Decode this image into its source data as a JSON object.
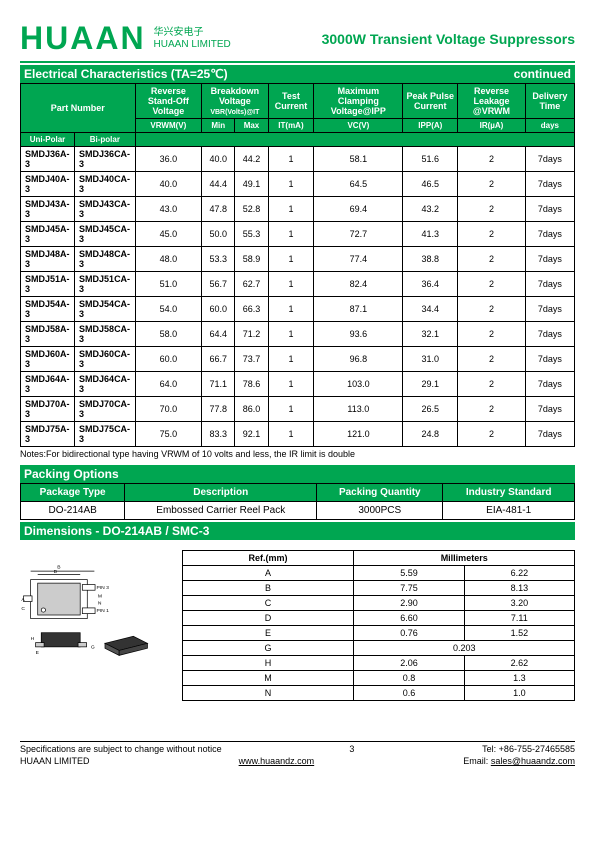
{
  "header": {
    "logo": "HUAAN",
    "logo_cn": "华兴安电子",
    "logo_en": "HUAAN LIMITED",
    "title": "3000W Transient Voltage Suppressors"
  },
  "elec_section": {
    "title": "Electrical    Characteristics    (TA=25℃)",
    "continued": "continued"
  },
  "main_headers": {
    "part": "Part   Number",
    "uni": "Uni-Polar",
    "bi": "Bi-polar",
    "rev_standoff": "Reverse Stand-Off Voltage",
    "breakdown": "Breakdown Voltage",
    "vbr_sub": "VBR(Volts)@IT",
    "test_current": "Test Current",
    "max_clamp": "Maximum Clamping Voltage@IPP",
    "peak_pulse": "Peak Pulse Current",
    "rev_leak": "Reverse Leakage @VRWM",
    "delivery": "Delivery Time",
    "vrwm": "VRWM(V)",
    "min": "Min",
    "max": "Max",
    "it": "IT(mA)",
    "vc": "VC(V)",
    "ipp": "IPP(A)",
    "ir": "IR(µA)",
    "days": "days"
  },
  "rows": [
    {
      "uni": "SMDJ36A-3",
      "bi": "SMDJ36CA-3",
      "v": "36.0",
      "min": "40.0",
      "max": "44.2",
      "it": "1",
      "vc": "58.1",
      "ipp": "51.6",
      "ir": "2",
      "d": "7days"
    },
    {
      "uni": "SMDJ40A-3",
      "bi": "SMDJ40CA-3",
      "v": "40.0",
      "min": "44.4",
      "max": "49.1",
      "it": "1",
      "vc": "64.5",
      "ipp": "46.5",
      "ir": "2",
      "d": "7days"
    },
    {
      "uni": "SMDJ43A-3",
      "bi": "SMDJ43CA-3",
      "v": "43.0",
      "min": "47.8",
      "max": "52.8",
      "it": "1",
      "vc": "69.4",
      "ipp": "43.2",
      "ir": "2",
      "d": "7days"
    },
    {
      "uni": "SMDJ45A-3",
      "bi": "SMDJ45CA-3",
      "v": "45.0",
      "min": "50.0",
      "max": "55.3",
      "it": "1",
      "vc": "72.7",
      "ipp": "41.3",
      "ir": "2",
      "d": "7days"
    },
    {
      "uni": "SMDJ48A-3",
      "bi": "SMDJ48CA-3",
      "v": "48.0",
      "min": "53.3",
      "max": "58.9",
      "it": "1",
      "vc": "77.4",
      "ipp": "38.8",
      "ir": "2",
      "d": "7days"
    },
    {
      "uni": "SMDJ51A-3",
      "bi": "SMDJ51CA-3",
      "v": "51.0",
      "min": "56.7",
      "max": "62.7",
      "it": "1",
      "vc": "82.4",
      "ipp": "36.4",
      "ir": "2",
      "d": "7days"
    },
    {
      "uni": "SMDJ54A-3",
      "bi": "SMDJ54CA-3",
      "v": "54.0",
      "min": "60.0",
      "max": "66.3",
      "it": "1",
      "vc": "87.1",
      "ipp": "34.4",
      "ir": "2",
      "d": "7days"
    },
    {
      "uni": "SMDJ58A-3",
      "bi": "SMDJ58CA-3",
      "v": "58.0",
      "min": "64.4",
      "max": "71.2",
      "it": "1",
      "vc": "93.6",
      "ipp": "32.1",
      "ir": "2",
      "d": "7days"
    },
    {
      "uni": "SMDJ60A-3",
      "bi": "SMDJ60CA-3",
      "v": "60.0",
      "min": "66.7",
      "max": "73.7",
      "it": "1",
      "vc": "96.8",
      "ipp": "31.0",
      "ir": "2",
      "d": "7days"
    },
    {
      "uni": "SMDJ64A-3",
      "bi": "SMDJ64CA-3",
      "v": "64.0",
      "min": "71.1",
      "max": "78.6",
      "it": "1",
      "vc": "103.0",
      "ipp": "29.1",
      "ir": "2",
      "d": "7days"
    },
    {
      "uni": "SMDJ70A-3",
      "bi": "SMDJ70CA-3",
      "v": "70.0",
      "min": "77.8",
      "max": "86.0",
      "it": "1",
      "vc": "113.0",
      "ipp": "26.5",
      "ir": "2",
      "d": "7days"
    },
    {
      "uni": "SMDJ75A-3",
      "bi": "SMDJ75CA-3",
      "v": "75.0",
      "min": "83.3",
      "max": "92.1",
      "it": "1",
      "vc": "121.0",
      "ipp": "24.8",
      "ir": "2",
      "d": "7days"
    }
  ],
  "notes": "Notes:For bidirectional type having VRWM of 10 volts and less, the IR limit is double",
  "packing": {
    "title": "Packing Options",
    "h1": "Package Type",
    "h2": "Description",
    "h3": "Packing    Quantity",
    "h4": "Industry Standard",
    "v1": "DO-214AB",
    "v2": "Embossed Carrier Reel Pack",
    "v3": "3000PCS",
    "v4": "EIA-481-1"
  },
  "dim_title": "Dimensions - DO-214AB / SMC-3",
  "dim_headers": {
    "ref": "Ref.(mm)",
    "mm": "Millimeters"
  },
  "dim_rows": [
    {
      "r": "A",
      "a": "5.59",
      "b": "6.22"
    },
    {
      "r": "B",
      "a": "7.75",
      "b": "8.13"
    },
    {
      "r": "C",
      "a": "2.90",
      "b": "3.20"
    },
    {
      "r": "D",
      "a": "6.60",
      "b": "7.11"
    },
    {
      "r": "E",
      "a": "0.76",
      "b": "1.52"
    },
    {
      "r": "G",
      "a": "0.203",
      "b": ""
    },
    {
      "r": "H",
      "a": "2.06",
      "b": "2.62"
    },
    {
      "r": "M",
      "a": "0.8",
      "b": "1.3"
    },
    {
      "r": "N",
      "a": "0.6",
      "b": "1.0"
    }
  ],
  "diagram": {
    "pin1": "PIN 1",
    "pin3": "PIN 3",
    "labels": {
      "A": "A",
      "B": "B",
      "C": "C",
      "D": "D",
      "E": "E",
      "G": "G",
      "H": "H",
      "M": "M",
      "N": "N"
    }
  },
  "footer": {
    "spec": "Specifications are subject to change without notice",
    "page": "3",
    "tel": "Tel:   +86-755-27465585",
    "company": "HUAAN LIMITED",
    "web": "www.huaandz.com",
    "email_label": "Email:",
    "email": "sales@huaandz.com"
  }
}
